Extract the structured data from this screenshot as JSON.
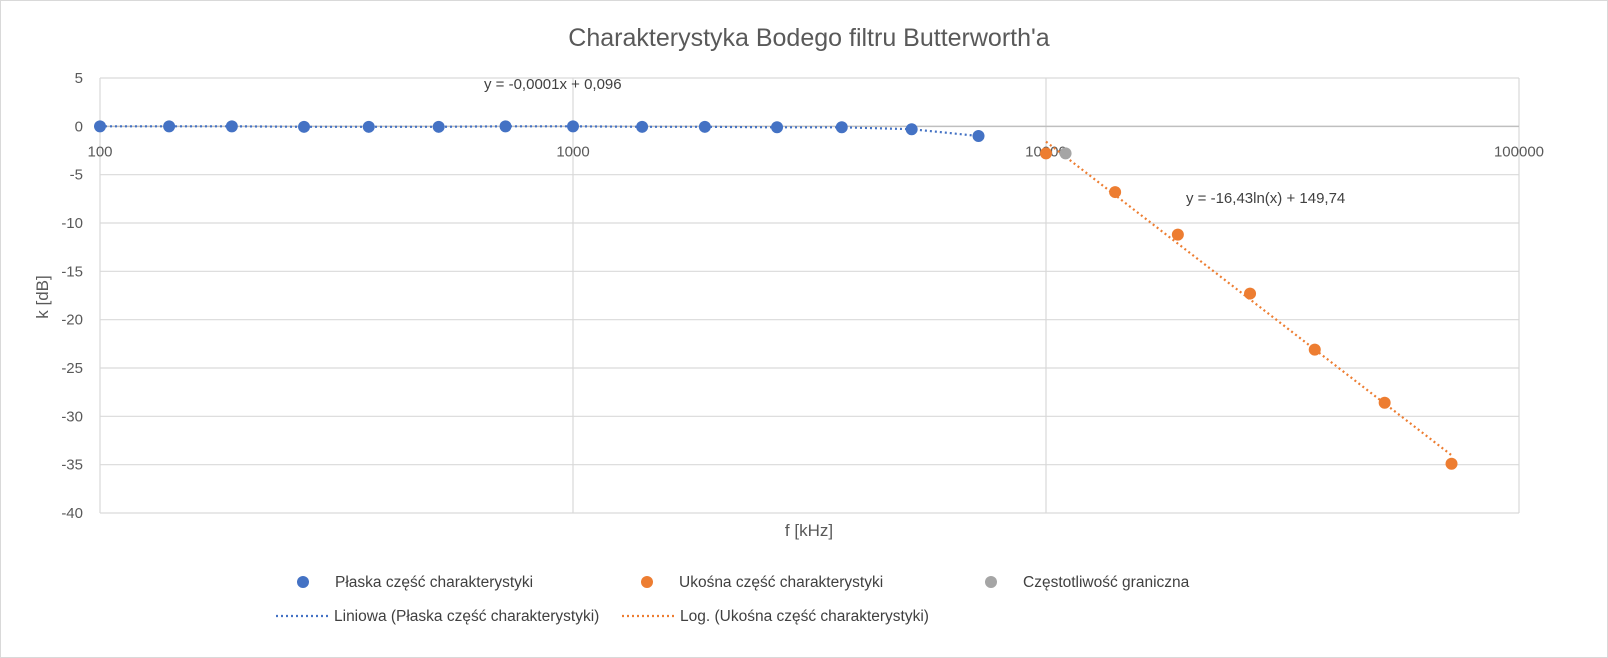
{
  "chart_data": {
    "type": "scatter",
    "title": "Charakterystyka Bodego filtru Butterworth'a",
    "xlabel": "f [kHz]",
    "ylabel": "k [dB]",
    "x_scale": "log",
    "xlim": [
      100,
      100000
    ],
    "ylim": [
      -40,
      5
    ],
    "x_ticks": [
      "100",
      "1000",
      "10000",
      "100000"
    ],
    "y_ticks": [
      "5",
      "0",
      "-5",
      "-10",
      "-15",
      "-20",
      "-25",
      "-30",
      "-35",
      "-40"
    ],
    "grid": true,
    "legend_position": "bottom",
    "series": [
      {
        "name": "Płaska część charakterystyki",
        "color": "#4472c4",
        "marker": "circle",
        "points": [
          [
            100,
            0.0
          ],
          [
            140,
            0.0
          ],
          [
            190,
            0.0
          ],
          [
            270,
            -0.05
          ],
          [
            370,
            -0.05
          ],
          [
            520,
            -0.05
          ],
          [
            720,
            0.0
          ],
          [
            1000,
            0.0
          ],
          [
            1400,
            -0.05
          ],
          [
            1900,
            -0.05
          ],
          [
            2700,
            -0.1
          ],
          [
            3700,
            -0.1
          ],
          [
            5200,
            -0.3
          ],
          [
            7200,
            -1.0
          ]
        ]
      },
      {
        "name": "Ukośna część charakterystyki",
        "color": "#ed7d31",
        "marker": "circle",
        "points": [
          [
            10000,
            -2.8
          ],
          [
            14000,
            -6.8
          ],
          [
            19000,
            -11.2
          ],
          [
            27000,
            -17.3
          ],
          [
            37000,
            -23.1
          ],
          [
            52000,
            -28.6
          ],
          [
            72000,
            -34.9
          ]
        ]
      },
      {
        "name": "Częstotliwość graniczna",
        "color": "#a5a5a5",
        "marker": "circle",
        "points": [
          [
            11000,
            -2.8
          ]
        ]
      }
    ],
    "trendlines": [
      {
        "name": "Liniowa (Płaska część charakterystyki)",
        "color": "#4472c4",
        "style": "dotted",
        "equation": "y = -0,0001x + 0,096"
      },
      {
        "name": "Log. (Ukośna część charakterystyki)",
        "color": "#ed7d31",
        "style": "dotted",
        "equation": "y = -16,43ln(x) + 149,74"
      }
    ]
  }
}
